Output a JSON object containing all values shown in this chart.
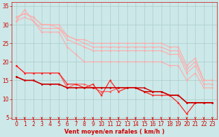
{
  "background_color": "#cce8e8",
  "grid_color": "#aacccc",
  "xlabel": "Vent moyen/en rafales ( km/h )",
  "x_ticks": [
    0,
    1,
    2,
    3,
    4,
    5,
    6,
    7,
    8,
    9,
    10,
    11,
    12,
    13,
    14,
    15,
    16,
    17,
    18,
    19,
    20,
    21,
    22,
    23
  ],
  "ylim": [
    4.5,
    36
  ],
  "yticks": [
    5,
    10,
    15,
    20,
    25,
    30,
    35
  ],
  "lines": [
    {
      "color": "#ffaaaa",
      "lw": 0.8,
      "marker": "D",
      "ms": 1.5,
      "data_x": [
        0,
        1,
        2,
        3,
        4,
        5,
        6,
        7,
        8,
        9,
        10,
        11,
        12,
        13,
        14,
        15,
        16,
        17,
        18,
        19,
        20,
        21,
        22,
        23
      ],
      "data_y": [
        31,
        34,
        31,
        28,
        28,
        28,
        24,
        22,
        20,
        20,
        20,
        20,
        20,
        20,
        20,
        20,
        20,
        20,
        19,
        19,
        15,
        17,
        13,
        13
      ]
    },
    {
      "color": "#ffaaaa",
      "lw": 0.8,
      "marker": "D",
      "ms": 1.5,
      "data_x": [
        0,
        1,
        2,
        3,
        4,
        5,
        6,
        7,
        8,
        9,
        10,
        11,
        12,
        13,
        14,
        15,
        16,
        17,
        18,
        19,
        20,
        21,
        22,
        23
      ],
      "data_y": [
        31,
        32,
        31,
        29,
        29,
        29,
        26,
        25,
        24,
        23,
        23,
        23,
        23,
        23,
        23,
        23,
        23,
        23,
        22,
        22,
        17,
        19,
        14,
        14
      ]
    },
    {
      "color": "#ffaaaa",
      "lw": 0.8,
      "marker": "D",
      "ms": 1.5,
      "data_x": [
        0,
        1,
        2,
        3,
        4,
        5,
        6,
        7,
        8,
        9,
        10,
        11,
        12,
        13,
        14,
        15,
        16,
        17,
        18,
        19,
        20,
        21,
        22,
        23
      ],
      "data_y": [
        32,
        33,
        32,
        30,
        30,
        29,
        27,
        26,
        25,
        24,
        24,
        24,
        24,
        24,
        24,
        24,
        24,
        24,
        23,
        23,
        18,
        20,
        15,
        15
      ]
    },
    {
      "color": "#ffaaaa",
      "lw": 0.8,
      "marker": "D",
      "ms": 1.5,
      "data_x": [
        0,
        1,
        2,
        3,
        4,
        5,
        6,
        7,
        8,
        9,
        10,
        11,
        12,
        13,
        14,
        15,
        16,
        17,
        18,
        19,
        20,
        21,
        22,
        23
      ],
      "data_y": [
        32,
        33,
        32,
        30,
        30,
        30,
        27,
        26,
        26,
        25,
        25,
        25,
        25,
        25,
        25,
        25,
        25,
        25,
        24,
        24,
        19,
        21,
        15,
        15
      ]
    },
    {
      "color": "#ff5555",
      "lw": 0.8,
      "marker": "D",
      "ms": 1.5,
      "data_x": [
        0,
        1,
        2,
        3,
        4,
        5,
        6,
        7,
        8,
        9,
        10,
        11,
        12,
        13,
        14,
        15,
        16,
        17,
        18,
        19,
        20,
        21,
        22,
        23
      ],
      "data_y": [
        19,
        17,
        17,
        17,
        17,
        17,
        13,
        14,
        14,
        13,
        12,
        12,
        13,
        13,
        13,
        12,
        12,
        12,
        11,
        11,
        9,
        9,
        9,
        9
      ]
    },
    {
      "color": "#ff2222",
      "lw": 0.9,
      "marker": "D",
      "ms": 1.5,
      "data_x": [
        0,
        1,
        2,
        3,
        4,
        5,
        6,
        7,
        8,
        9,
        10,
        11,
        12,
        13,
        14,
        15,
        16,
        17,
        18,
        19,
        20,
        21,
        22,
        23
      ],
      "data_y": [
        19,
        17,
        17,
        17,
        17,
        17,
        14,
        14,
        13,
        14,
        11,
        15,
        12,
        13,
        13,
        12,
        11,
        11,
        11,
        9,
        6,
        9,
        9,
        9
      ]
    },
    {
      "color": "#cc0000",
      "lw": 1.0,
      "marker": "D",
      "ms": 1.5,
      "data_x": [
        0,
        1,
        2,
        3,
        4,
        5,
        6,
        7,
        8,
        9,
        10,
        11,
        12,
        13,
        14,
        15,
        16,
        17,
        18,
        19,
        20,
        21,
        22,
        23
      ],
      "data_y": [
        16,
        15,
        15,
        14,
        14,
        14,
        13,
        13,
        13,
        13,
        13,
        13,
        13,
        13,
        13,
        12,
        12,
        12,
        11,
        11,
        9,
        9,
        9,
        9
      ]
    },
    {
      "color": "#cc0000",
      "lw": 1.0,
      "marker": "D",
      "ms": 1.5,
      "data_x": [
        0,
        1,
        2,
        3,
        4,
        5,
        6,
        7,
        8,
        9,
        10,
        11,
        12,
        13,
        14,
        15,
        16,
        17,
        18,
        19,
        20,
        21,
        22,
        23
      ],
      "data_y": [
        16,
        15,
        15,
        14,
        14,
        14,
        13,
        13,
        13,
        13,
        13,
        13,
        13,
        13,
        13,
        13,
        12,
        12,
        11,
        11,
        9,
        9,
        9,
        9
      ]
    }
  ],
  "arrow_color": "#dd0000",
  "xlabel_color": "#cc0000",
  "tick_color": "#cc0000",
  "label_fontsize": 6,
  "tick_fontsize": 5.5
}
